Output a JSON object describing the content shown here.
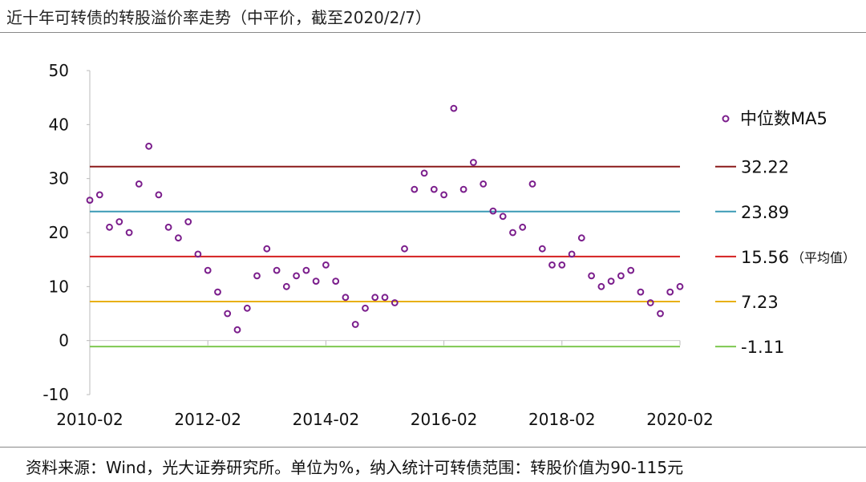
{
  "header": {
    "title": "近十年可转债的转股溢价率走势（中平价，截至2020/2/7）"
  },
  "footer": {
    "source": "资料来源：Wind，光大证券研究所。单位为%，纳入统计可转债范围：转股价值为90-115元"
  },
  "chart_data": {
    "type": "scatter",
    "title": "近十年可转债的转股溢价率走势（中平价，截至2020/2/7）",
    "xlabel": "",
    "ylabel": "",
    "ylim": [
      -10,
      50
    ],
    "yticks": [
      -10,
      0,
      10,
      20,
      30,
      40,
      50
    ],
    "xlim": [
      "2010-02",
      "2020-02"
    ],
    "xticks": [
      "2010-02",
      "2012-02",
      "2014-02",
      "2016-02",
      "2018-02",
      "2020-02"
    ],
    "grid": false,
    "legend_position": "right",
    "marker_color": "#7B1E8C",
    "series": [
      {
        "name": "中位数MA5",
        "x": [
          "2010-02",
          "2010-04",
          "2010-06",
          "2010-08",
          "2010-10",
          "2010-12",
          "2011-02",
          "2011-04",
          "2011-06",
          "2011-08",
          "2011-10",
          "2011-12",
          "2012-02",
          "2012-04",
          "2012-06",
          "2012-08",
          "2012-10",
          "2012-12",
          "2013-02",
          "2013-04",
          "2013-06",
          "2013-08",
          "2013-10",
          "2013-12",
          "2014-02",
          "2014-04",
          "2014-06",
          "2014-08",
          "2014-10",
          "2014-12",
          "2015-02",
          "2015-04",
          "2015-06",
          "2015-08",
          "2015-10",
          "2015-12",
          "2016-02",
          "2016-04",
          "2016-06",
          "2016-08",
          "2016-10",
          "2016-12",
          "2017-02",
          "2017-04",
          "2017-06",
          "2017-08",
          "2017-10",
          "2017-12",
          "2018-02",
          "2018-04",
          "2018-06",
          "2018-08",
          "2018-10",
          "2018-12",
          "2019-02",
          "2019-04",
          "2019-06",
          "2019-08",
          "2019-10",
          "2019-12",
          "2020-02"
        ],
        "y": [
          26,
          27,
          21,
          22,
          20,
          29,
          36,
          27,
          21,
          19,
          22,
          16,
          13,
          9,
          5,
          2,
          6,
          12,
          17,
          13,
          10,
          12,
          13,
          11,
          14,
          11,
          8,
          3,
          6,
          8,
          8,
          7,
          17,
          28,
          31,
          28,
          27,
          43,
          28,
          33,
          29,
          24,
          23,
          20,
          21,
          29,
          17,
          14,
          14,
          16,
          19,
          12,
          10,
          11,
          12,
          13,
          9,
          7,
          5,
          9,
          10
        ]
      }
    ],
    "reference_lines": [
      {
        "label": "32.22",
        "value": 32.22,
        "color": "#8B1A1A",
        "note": ""
      },
      {
        "label": "23.89",
        "value": 23.89,
        "color": "#3A9AB5",
        "note": ""
      },
      {
        "label": "15.56",
        "value": 15.56,
        "color": "#D42020",
        "note": "（平均值）"
      },
      {
        "label": "7.23",
        "value": 7.23,
        "color": "#E8B010",
        "note": ""
      },
      {
        "label": "-1.11",
        "value": -1.11,
        "color": "#7EC850",
        "note": ""
      }
    ]
  }
}
